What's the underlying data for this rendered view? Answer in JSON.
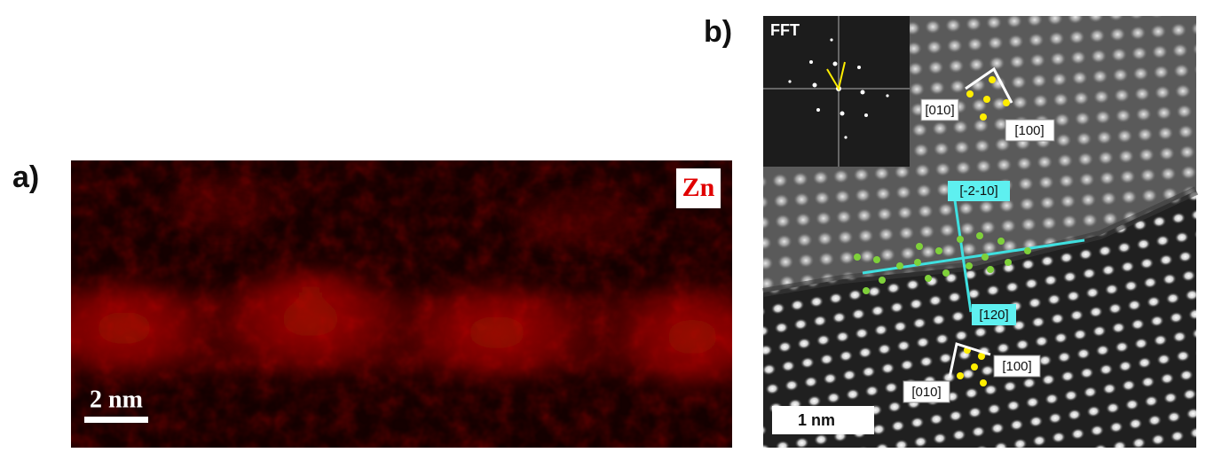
{
  "panel_a": {
    "label": "a)",
    "element": "Zn",
    "scale_bar": "2 nm"
  },
  "panel_b": {
    "label": "b)",
    "inset": "FFT",
    "upper_directions": [
      "[010]",
      "[100]"
    ],
    "boundary_directions": [
      "[-2-10]",
      "[120]"
    ],
    "lower_directions": [
      "[100]",
      "[010]"
    ],
    "scale_bar": "1 nm"
  }
}
